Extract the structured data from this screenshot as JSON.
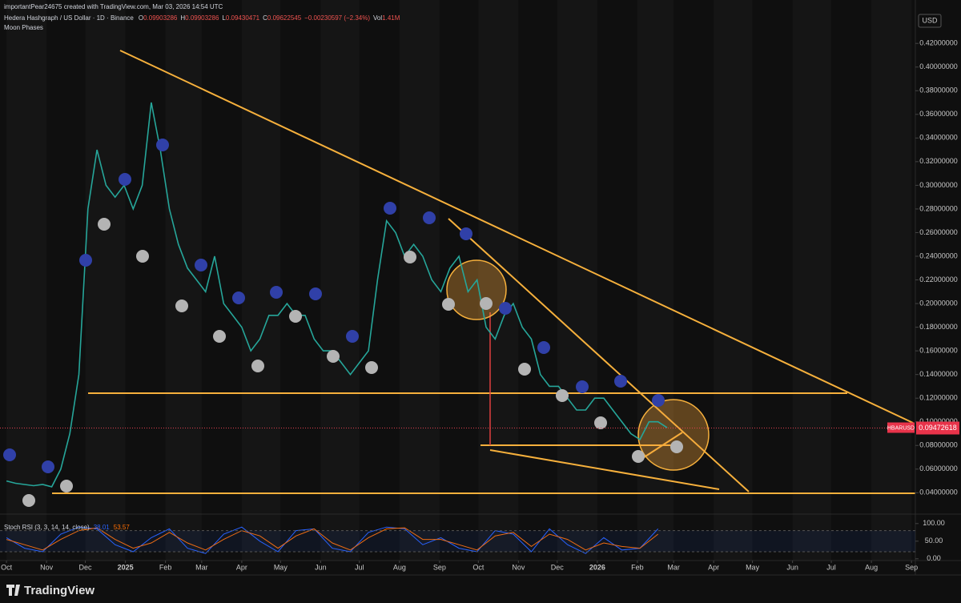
{
  "header": {
    "credit": "importantPear24675 created with TradingView.com, Mar 03, 2026 14:54 UTC",
    "symbol": "Hedera Hashgraph / US Dollar · 1D · Binance",
    "ohlc": [
      {
        "label": "O",
        "value": "0.09903286"
      },
      {
        "label": "H",
        "value": "0.09903286"
      },
      {
        "label": "L",
        "value": "0.09430471"
      },
      {
        "label": "C",
        "value": "0.09622545"
      }
    ],
    "change": "−0.00230597 (−2.34%)",
    "volume": {
      "label": "Vol",
      "value": "1.41M"
    },
    "indicator": "Moon Phases",
    "currency": "USD"
  },
  "chart_data": [
    {
      "type": "line",
      "grid": false,
      "x": [
        0,
        7,
        14,
        21,
        28,
        35,
        42,
        49,
        56,
        63,
        70,
        77,
        84,
        91,
        98,
        105,
        112,
        119,
        126,
        133,
        140,
        147,
        154,
        161,
        168,
        175,
        182,
        189,
        196,
        203,
        210,
        217,
        224,
        231,
        238,
        245,
        252,
        259,
        266,
        273,
        280,
        287,
        294,
        301,
        308,
        315,
        322,
        329,
        336,
        343,
        350,
        357,
        364,
        371,
        378,
        385,
        392,
        399,
        406,
        413,
        420,
        427,
        434,
        441,
        448,
        455,
        462,
        469,
        476,
        483,
        490,
        497,
        504,
        511
      ],
      "series": [
        {
          "name": "HBARUSD",
          "color": "#26a69a",
          "values": [
            0.05,
            0.048,
            0.047,
            0.046,
            0.047,
            0.045,
            0.06,
            0.09,
            0.14,
            0.28,
            0.33,
            0.3,
            0.29,
            0.3,
            0.28,
            0.3,
            0.37,
            0.33,
            0.28,
            0.25,
            0.23,
            0.22,
            0.21,
            0.24,
            0.2,
            0.19,
            0.18,
            0.16,
            0.17,
            0.19,
            0.19,
            0.2,
            0.19,
            0.19,
            0.17,
            0.16,
            0.16,
            0.15,
            0.14,
            0.15,
            0.16,
            0.22,
            0.27,
            0.26,
            0.24,
            0.25,
            0.24,
            0.22,
            0.21,
            0.23,
            0.24,
            0.21,
            0.22,
            0.18,
            0.17,
            0.19,
            0.2,
            0.18,
            0.17,
            0.14,
            0.13,
            0.13,
            0.12,
            0.11,
            0.11,
            0.12,
            0.12,
            0.11,
            0.1,
            0.09,
            0.085,
            0.1,
            0.1,
            0.095
          ]
        }
      ],
      "last_price": {
        "value": 0.09472618,
        "label": "0.09472618"
      },
      "symbol_tag": "HBARUSD",
      "xlim": [
        -5,
        703
      ],
      "xticks": [
        {
          "value": 0,
          "label": "Oct"
        },
        {
          "value": 31,
          "label": "Nov"
        },
        {
          "value": 61,
          "label": "Dec"
        },
        {
          "value": 92,
          "label": "2025"
        },
        {
          "value": 123,
          "label": "Feb"
        },
        {
          "value": 151,
          "label": "Mar"
        },
        {
          "value": 182,
          "label": "Apr"
        },
        {
          "value": 212,
          "label": "May"
        },
        {
          "value": 243,
          "label": "Jun"
        },
        {
          "value": 273,
          "label": "Jul"
        },
        {
          "value": 304,
          "label": "Aug"
        },
        {
          "value": 335,
          "label": "Sep"
        },
        {
          "value": 365,
          "label": "Oct"
        },
        {
          "value": 396,
          "label": "Nov"
        },
        {
          "value": 426,
          "label": "Dec"
        },
        {
          "value": 457,
          "label": "2026"
        },
        {
          "value": 488,
          "label": "Feb"
        },
        {
          "value": 516,
          "label": "Mar"
        },
        {
          "value": 547,
          "label": "Apr"
        },
        {
          "value": 577,
          "label": "May"
        },
        {
          "value": 608,
          "label": "Jun"
        },
        {
          "value": 638,
          "label": "Jul"
        },
        {
          "value": 669,
          "label": "Aug"
        },
        {
          "value": 700,
          "label": "Sep"
        }
      ],
      "ylim": [
        0.026,
        0.433
      ],
      "yticks": [
        {
          "value": 0.04,
          "label": "0.04000000"
        },
        {
          "value": 0.06,
          "label": "0.06000000"
        },
        {
          "value": 0.08,
          "label": "0.08000000"
        },
        {
          "value": 0.1,
          "label": "0.10000000"
        },
        {
          "value": 0.12,
          "label": "0.12000000"
        },
        {
          "value": 0.14,
          "label": "0.14000000"
        },
        {
          "value": 0.16,
          "label": "0.16000000"
        },
        {
          "value": 0.18,
          "label": "0.18000000"
        },
        {
          "value": 0.2,
          "label": "0.20000000"
        },
        {
          "value": 0.22,
          "label": "0.22000000"
        },
        {
          "value": 0.24,
          "label": "0.24000000"
        },
        {
          "value": 0.26,
          "label": "0.26000000"
        },
        {
          "value": 0.28,
          "label": "0.28000000"
        },
        {
          "value": 0.3,
          "label": "0.30000000"
        },
        {
          "value": 0.32,
          "label": "0.32000000"
        },
        {
          "value": 0.34,
          "label": "0.34000000"
        },
        {
          "value": 0.36,
          "label": "0.36000000"
        },
        {
          "value": 0.38,
          "label": "0.38000000"
        },
        {
          "value": 0.4,
          "label": "0.40000000"
        },
        {
          "value": 0.42,
          "label": "0.42000000"
        }
      ]
    },
    {
      "type": "line",
      "title": "Stoch RSI (3, 3, 14, 14, close)",
      "x": [
        0,
        14,
        28,
        42,
        56,
        70,
        84,
        98,
        112,
        126,
        140,
        154,
        168,
        182,
        196,
        210,
        224,
        238,
        252,
        266,
        280,
        294,
        308,
        322,
        336,
        350,
        364,
        378,
        392,
        406,
        420,
        434,
        448,
        462,
        476,
        490,
        504
      ],
      "series": [
        {
          "name": "K",
          "color": "#2962ff",
          "value_label": "38.01",
          "values": [
            60,
            30,
            20,
            70,
            90,
            85,
            40,
            20,
            60,
            85,
            30,
            15,
            70,
            90,
            50,
            20,
            80,
            85,
            30,
            20,
            75,
            90,
            85,
            40,
            60,
            30,
            20,
            80,
            70,
            20,
            85,
            40,
            15,
            60,
            25,
            30,
            85
          ]
        },
        {
          "name": "D",
          "color": "#ff6d00",
          "value_label": "53.57",
          "values": [
            55,
            40,
            25,
            55,
            80,
            88,
            55,
            30,
            45,
            75,
            45,
            25,
            55,
            80,
            65,
            30,
            65,
            85,
            45,
            25,
            60,
            85,
            88,
            55,
            55,
            40,
            25,
            65,
            75,
            35,
            70,
            55,
            25,
            45,
            35,
            30,
            70
          ]
        }
      ],
      "upper_band": 80,
      "lower_band": 20,
      "ylim": [
        -5,
        120
      ],
      "yticks": [
        {
          "value": 100,
          "label": "100.00"
        },
        {
          "value": 50,
          "label": "50.00"
        },
        {
          "value": 0,
          "label": "0.00"
        }
      ]
    }
  ],
  "footer": {
    "logo": "TradingView"
  }
}
